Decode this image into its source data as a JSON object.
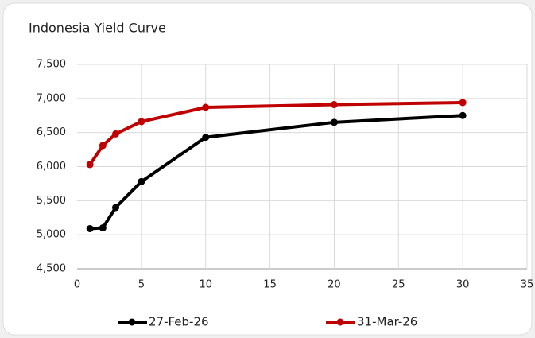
{
  "chart_data": {
    "type": "line",
    "title": "Indonesia Yield Curve",
    "series": [
      {
        "name": "27-Feb-26",
        "color": "#000000",
        "x": [
          1,
          2,
          3,
          5,
          10,
          20,
          30
        ],
        "values": [
          5090,
          5100,
          5400,
          5780,
          6430,
          6650,
          6750
        ]
      },
      {
        "name": "31-Mar-26",
        "color": "#c00000",
        "x": [
          1,
          2,
          3,
          5,
          10,
          20,
          30
        ],
        "values": [
          6030,
          6310,
          6480,
          6660,
          6870,
          6910,
          6940
        ]
      }
    ],
    "xlim": [
      0,
      35
    ],
    "xticks": [
      0,
      5,
      10,
      15,
      20,
      25,
      30,
      35
    ],
    "ylim": [
      4500,
      7500
    ],
    "yticks": [
      {
        "value": 4500,
        "label": "4,500"
      },
      {
        "value": 5000,
        "label": "5,000"
      },
      {
        "value": 5500,
        "label": "5,500"
      },
      {
        "value": 6000,
        "label": "6,000"
      },
      {
        "value": 6500,
        "label": "6,500"
      },
      {
        "value": 7000,
        "label": "7,000"
      },
      {
        "value": 7500,
        "label": "7,500"
      }
    ],
    "grid": true,
    "legend": "bottom"
  }
}
